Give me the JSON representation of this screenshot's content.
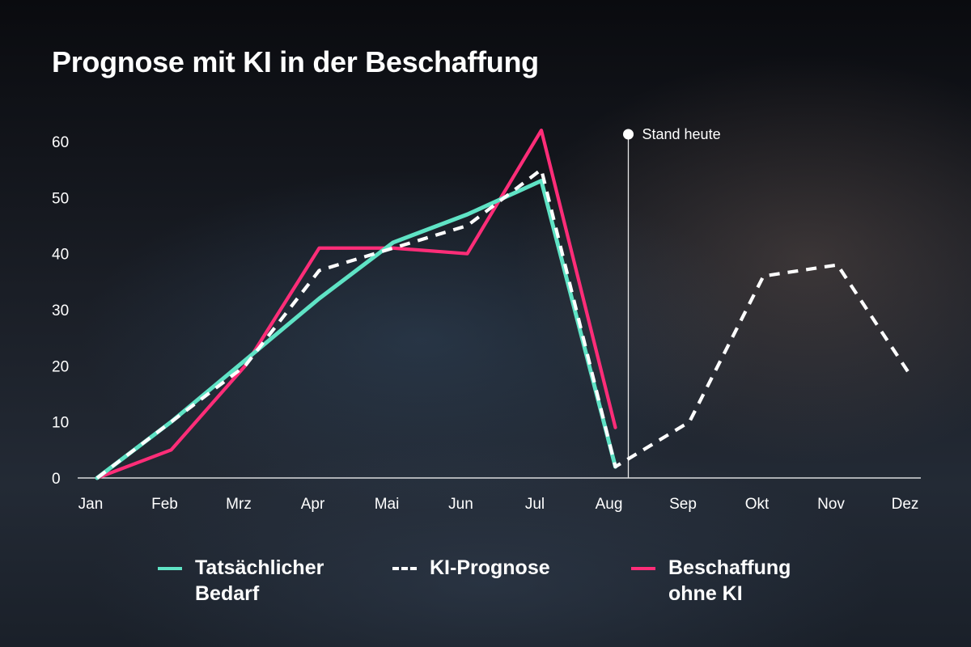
{
  "title": "Prognose mit KI in der Beschaffung",
  "marker": {
    "label": "Stand heute",
    "at": "Aug"
  },
  "colors": {
    "tatsaechlich": "#5fe3c5",
    "prognose": "#ffffff",
    "ohne_ki": "#ff2d78",
    "axis": "#ffffff"
  },
  "chart_data": {
    "type": "line",
    "title": "Prognose mit KI in der Beschaffung",
    "categories": [
      "Jan",
      "Feb",
      "Mrz",
      "Apr",
      "Mai",
      "Jun",
      "Jul",
      "Aug",
      "Sep",
      "Okt",
      "Nov",
      "Dez"
    ],
    "ylim": [
      0,
      60
    ],
    "yticks": [
      0,
      10,
      20,
      30,
      40,
      50,
      60
    ],
    "grid": false,
    "legend_position": "bottom",
    "series": [
      {
        "name": "Tatsächlicher Bedarf",
        "key": "tatsaechlich",
        "style": "solid",
        "values": [
          0,
          10,
          21,
          32,
          42,
          47,
          53,
          2,
          null,
          null,
          null,
          null
        ]
      },
      {
        "name": "KI-Prognose",
        "key": "prognose",
        "style": "dashed",
        "values": [
          0,
          10,
          20,
          37,
          41,
          45,
          55,
          2,
          10,
          36,
          38,
          18
        ]
      },
      {
        "name": "Beschaffung ohne KI",
        "key": "ohne_ki",
        "style": "solid",
        "values": [
          0,
          5,
          20,
          41,
          41,
          40,
          62,
          9,
          null,
          null,
          null,
          null
        ]
      }
    ]
  },
  "legend": [
    {
      "key": "tatsaechlich",
      "label_line1": "Tatsächlicher",
      "label_line2": "Bedarf",
      "style": "solid"
    },
    {
      "key": "prognose",
      "label_line1": "KI-Prognose",
      "label_line2": "",
      "style": "dashed"
    },
    {
      "key": "ohne_ki",
      "label_line1": "Beschaffung",
      "label_line2": "ohne KI",
      "style": "solid"
    }
  ]
}
